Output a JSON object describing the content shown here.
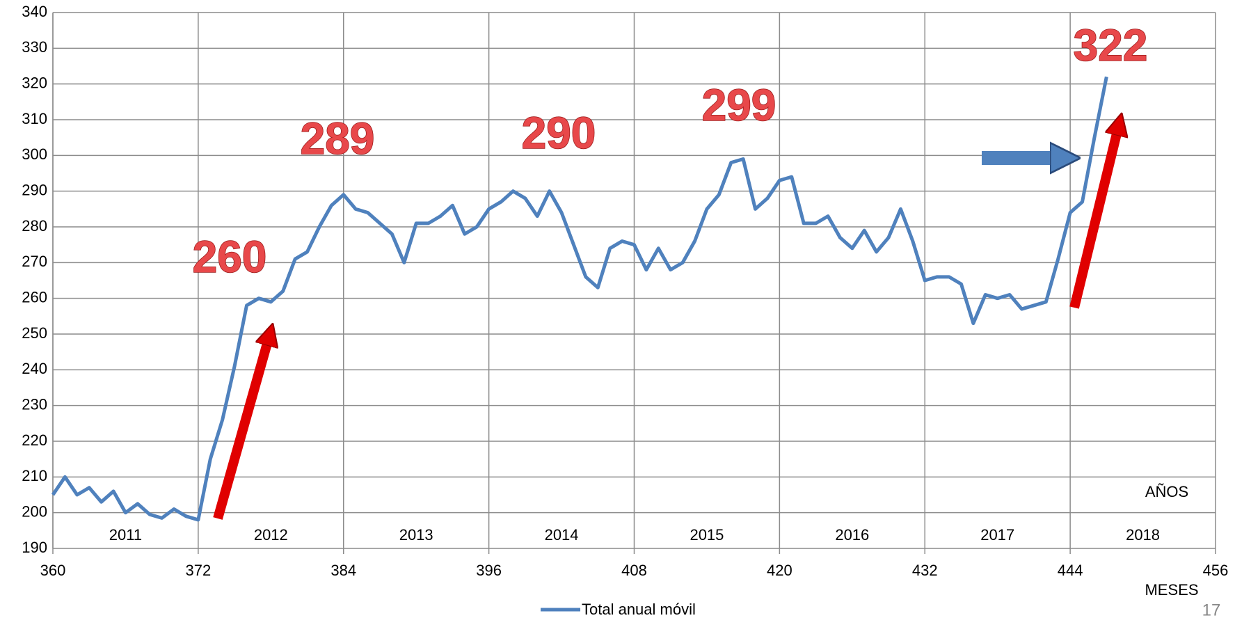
{
  "chart_data": {
    "type": "line",
    "x": [
      360,
      361,
      362,
      363,
      364,
      365,
      366,
      367,
      368,
      369,
      370,
      371,
      372,
      373,
      374,
      375,
      376,
      377,
      378,
      379,
      380,
      381,
      382,
      383,
      384,
      385,
      386,
      387,
      388,
      389,
      390,
      391,
      392,
      393,
      394,
      395,
      396,
      397,
      398,
      399,
      400,
      401,
      402,
      403,
      404,
      405,
      406,
      407,
      408,
      409,
      410,
      411,
      412,
      413,
      414,
      415,
      416,
      417,
      418,
      419,
      420,
      421,
      422,
      423,
      424,
      425,
      426,
      427,
      428,
      429,
      430,
      431,
      432,
      433,
      434,
      435,
      436,
      437,
      438,
      439,
      440,
      441,
      442,
      443,
      444,
      445,
      446,
      447
    ],
    "series": [
      {
        "name": "Total anual móvil",
        "color": "#4f81bd",
        "values": [
          205,
          210,
          205,
          207,
          203,
          206,
          200,
          202.5,
          199.5,
          198.5,
          201,
          199,
          198,
          215,
          226,
          241,
          258,
          260,
          259,
          262,
          271,
          273,
          280,
          286,
          289,
          285,
          284,
          281,
          278,
          270,
          281,
          281,
          283,
          286,
          278,
          280,
          285,
          287,
          290,
          288,
          283,
          290,
          284,
          275,
          266,
          263,
          274,
          276,
          275,
          268,
          274,
          268,
          270,
          276,
          285,
          289,
          298,
          299,
          285,
          288,
          293,
          294,
          281,
          281,
          283,
          277,
          274,
          279,
          273,
          277,
          285,
          276,
          265,
          266,
          266,
          264,
          253,
          261,
          260,
          261,
          257,
          258,
          259,
          271,
          284,
          287,
          305,
          322
        ]
      }
    ],
    "xlim": [
      360,
      456
    ],
    "xticks": [
      360,
      372,
      384,
      396,
      408,
      420,
      432,
      444,
      456
    ],
    "ylim": [
      190,
      340
    ],
    "yticks": [
      190,
      200,
      210,
      220,
      230,
      240,
      250,
      260,
      270,
      280,
      290,
      300,
      310,
      320,
      330,
      340
    ],
    "grid": true,
    "years": [
      "2011",
      "2012",
      "2013",
      "2014",
      "2015",
      "2016",
      "2017",
      "2018"
    ],
    "annotations": [
      "260",
      "289",
      "290",
      "299",
      "322"
    ],
    "years_label": "AÑOS",
    "x_label": "MESES",
    "page_number": "17"
  }
}
